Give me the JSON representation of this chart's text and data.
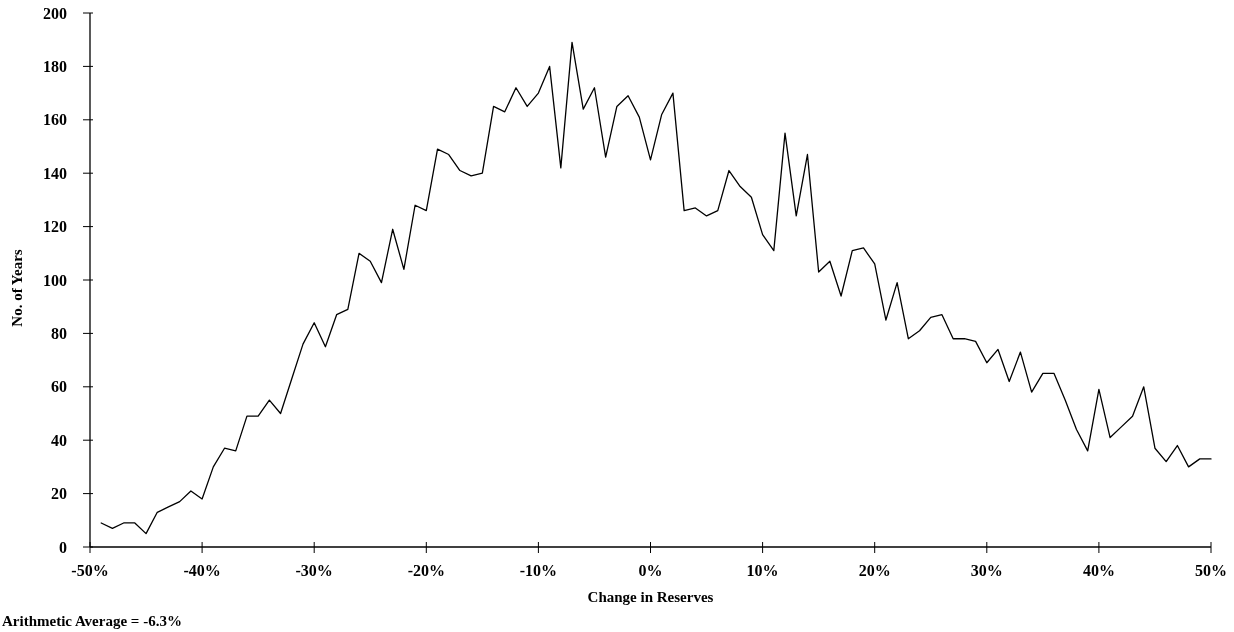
{
  "chart_data": {
    "type": "line",
    "xlabel": "Change in Reserves",
    "ylabel": "No. of Years",
    "annotations": [
      "Arithmetic Average = -6.3%"
    ],
    "x": [
      -49,
      -48,
      -47,
      -46,
      -45,
      -44,
      -43,
      -42,
      -41,
      -40,
      -39,
      -38,
      -37,
      -36,
      -35,
      -34,
      -33,
      -32,
      -31,
      -30,
      -29,
      -28,
      -27,
      -26,
      -25,
      -24,
      -23,
      -22,
      -21,
      -20,
      -19,
      -18,
      -17,
      -16,
      -15,
      -14,
      -13,
      -12,
      -11,
      -10,
      -9,
      -8,
      -7,
      -6,
      -5,
      -4,
      -3,
      -2,
      -1,
      0,
      1,
      2,
      3,
      4,
      5,
      6,
      7,
      8,
      9,
      10,
      11,
      12,
      13,
      14,
      15,
      16,
      17,
      18,
      19,
      20,
      21,
      22,
      23,
      24,
      25,
      26,
      27,
      28,
      29,
      30,
      31,
      32,
      33,
      34,
      35,
      36,
      37,
      38,
      39,
      40,
      41,
      42,
      43,
      44,
      45,
      46,
      47,
      48,
      49,
      50
    ],
    "series": [
      {
        "color": "#000000",
        "values": [
          9,
          7,
          9,
          9,
          5,
          13,
          15,
          17,
          21,
          18,
          30,
          37,
          36,
          49,
          49,
          55,
          50,
          63,
          76,
          84,
          75,
          87,
          89,
          110,
          107,
          99,
          119,
          104,
          128,
          126,
          149,
          147,
          141,
          139,
          140,
          165,
          163,
          172,
          165,
          170,
          180,
          142,
          189,
          164,
          172,
          146,
          165,
          169,
          161,
          145,
          162,
          170,
          126,
          127,
          124,
          126,
          141,
          135,
          131,
          117,
          111,
          155,
          124,
          147,
          103,
          107,
          94,
          111,
          112,
          106,
          85,
          99,
          78,
          81,
          86,
          87,
          78,
          78,
          77,
          69,
          74,
          62,
          73,
          58,
          65,
          65,
          55,
          44,
          36,
          59,
          41,
          45,
          49,
          60,
          37,
          32,
          38,
          30,
          33,
          33
        ]
      }
    ],
    "xlim": [
      -50,
      50
    ],
    "xticks": [
      {
        "value": -50,
        "label": "-50%"
      },
      {
        "value": -40,
        "label": "-40%"
      },
      {
        "value": -30,
        "label": "-30%"
      },
      {
        "value": -20,
        "label": "-20%"
      },
      {
        "value": -10,
        "label": "-10%"
      },
      {
        "value": 0,
        "label": "0%"
      },
      {
        "value": 10,
        "label": "10%"
      },
      {
        "value": 20,
        "label": "20%"
      },
      {
        "value": 30,
        "label": "30%"
      },
      {
        "value": 40,
        "label": "40%"
      },
      {
        "value": 50,
        "label": "50%"
      }
    ],
    "ylim": [
      0,
      200
    ],
    "yticks": [
      0,
      20,
      40,
      60,
      80,
      100,
      120,
      140,
      160,
      180,
      200
    ],
    "line_style": "solid"
  }
}
